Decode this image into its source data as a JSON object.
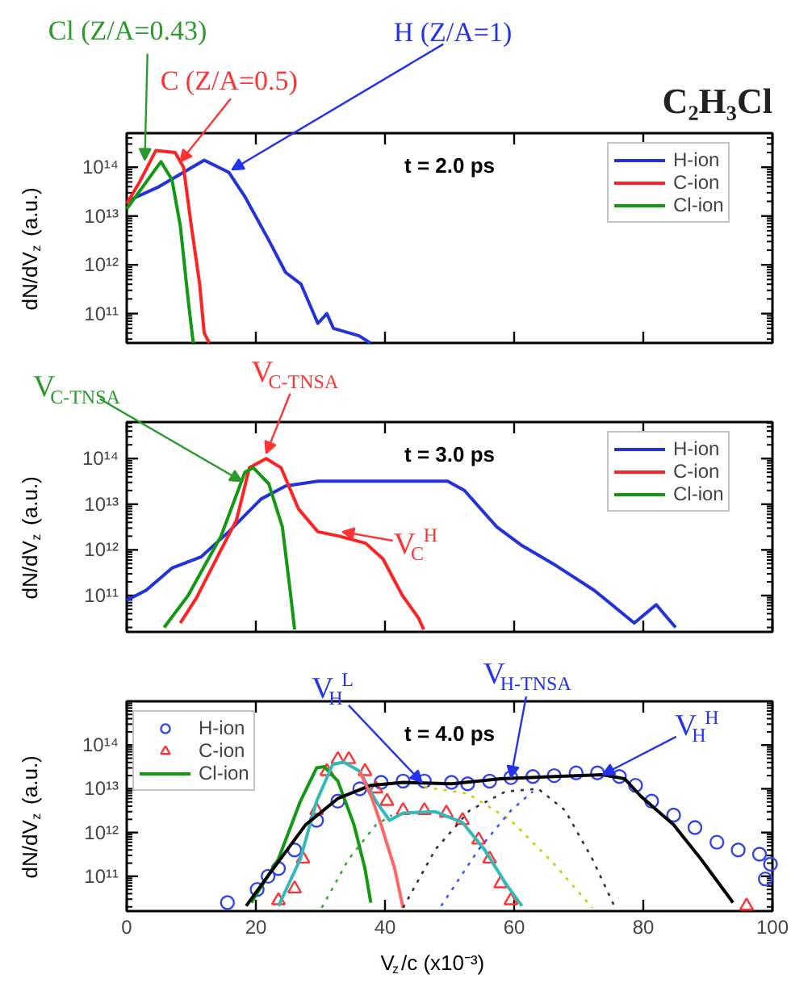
{
  "chart_data": [
    {
      "type": "line",
      "title": "C₂H₃Cl",
      "ylabel": "dN/dV$_{z}$ (a.u.)",
      "log": "y",
      "legend": "top right",
      "tick_labels": "y",
      "xlim": [
        0,
        100
      ],
      "xticks": [
        0,
        20,
        40,
        60,
        80,
        100
      ],
      "ylim": [
        25000000000.0,
        500000000000000.0
      ],
      "yticks": [
        {
          "value": 100000000000.0,
          "label": "10¹¹"
        },
        {
          "value": 1000000000000.0,
          "label": "10¹²"
        },
        {
          "value": 10000000000000.0,
          "label": "10¹³"
        },
        {
          "value": 100000000000000.0,
          "label": "10¹⁴"
        }
      ],
      "annotations": [
        {
          "text": "Cl (Z/A=0.43)",
          "x": 2.8,
          "y": 140000000000000.0
        },
        {
          "text": "C (Z/A=0.5)",
          "x": 8.3,
          "y": 130000000000000.0
        },
        {
          "text": "H (Z/A=1)",
          "x": 16.3,
          "y": 89000000000000.0
        },
        "t = 2.0 ps"
      ],
      "series": [
        {
          "name": "H-ion",
          "color": "#2233dd",
          "x": [
            0,
            5,
            12,
            15.8,
            18.3,
            22,
            24.6,
            27,
            29.6,
            31,
            32,
            36,
            37.7
          ],
          "values": [
            20000000000000.0,
            40000000000000.0,
            140000000000000.0,
            79000000000000.0,
            25000000000000.0,
            3200000000000.0,
            700000000000.0,
            400000000000.0,
            63000000000.0,
            100000000000.0,
            50000000000.0,
            35000000000.0,
            25000000000.0
          ]
        },
        {
          "name": "C-ion",
          "color": "#ff2222",
          "x": [
            0,
            2,
            4.5,
            7.5,
            8.8,
            10,
            11.3,
            12,
            12.8
          ],
          "values": [
            18000000000000.0,
            50000000000000.0,
            220000000000000.0,
            200000000000000.0,
            100000000000000.0,
            6300000000000.0,
            400000000000.0,
            40000000000.0,
            25000000000.0
          ]
        },
        {
          "name": "Cl-ion",
          "color": "#119911",
          "x": [
            0,
            5.3,
            7,
            8.3,
            9.5,
            10.3
          ],
          "values": [
            14000000000000.0,
            130000000000000.0,
            56000000000000.0,
            6300000000000.0,
            200000000000.0,
            25000000000.0
          ]
        }
      ]
    },
    {
      "type": "line",
      "ylabel": "dN/dV$_{z}$ (a.u.)",
      "log": "y",
      "legend": "top right",
      "tick_labels": "y",
      "xlim": [
        0,
        100
      ],
      "xticks": [
        0,
        20,
        40,
        60,
        80,
        100
      ],
      "ylim": [
        16000000000.0,
        630000000000000.0
      ],
      "yticks": [
        {
          "value": 100000000000.0,
          "label": "10¹¹"
        },
        {
          "value": 1000000000000.0,
          "label": "10¹²"
        },
        {
          "value": 10000000000000.0,
          "label": "10¹³"
        },
        {
          "value": 100000000000000.0,
          "label": "10¹⁴"
        }
      ],
      "annotations": [
        {
          "text": "V$_{C-TNSA}$",
          "x": 21.6,
          "y": 130000000000000.0
        },
        {
          "text": "V$_{C-TNSA}$",
          "x": 17.8,
          "y": 32000000000000.0
        },
        {
          "text": "V$_{C}$$^{H}$",
          "x": 33.4,
          "y": 2500000000000.0
        },
        "t = 3.0 ps"
      ],
      "series": [
        {
          "name": "H-ion",
          "color": "#2233dd",
          "x": [
            0,
            3,
            7,
            11.5,
            15.8,
            20.8,
            24.6,
            29.6,
            40,
            49.7,
            52.3,
            57.3,
            61,
            66,
            72.4,
            76,
            78.6,
            82,
            85
          ],
          "values": [
            79000000000.0,
            130000000000.0,
            400000000000.0,
            700000000000.0,
            2500000000000.0,
            13000000000000.0,
            25000000000000.0,
            32000000000000.0,
            32000000000000.0,
            32000000000000.0,
            20000000000000.0,
            3200000000000.0,
            1300000000000.0,
            500000000000.0,
            130000000000.0,
            50000000000.0,
            25000000000.0,
            63000000000.0,
            20000000000.0
          ]
        },
        {
          "name": "C-ion",
          "color": "#ff2222",
          "x": [
            8.3,
            10.8,
            14.6,
            17,
            19,
            21.6,
            23.9,
            26.6,
            29.6,
            32.9,
            37,
            39.7,
            42.7,
            45.2,
            46
          ],
          "values": [
            25000000000.0,
            89000000000.0,
            1000000000000.0,
            4500000000000.0,
            63000000000000.0,
            100000000000000.0,
            63000000000000.0,
            7900000000000.0,
            2500000000000.0,
            2000000000000.0,
            1400000000000.0,
            630000000000.0,
            100000000000.0,
            32000000000.0,
            18000000000.0
          ]
        },
        {
          "name": "Cl-ion",
          "color": "#119911",
          "x": [
            5.8,
            9.5,
            14.6,
            18.3,
            19.6,
            22,
            24.1,
            25.4,
            26
          ],
          "values": [
            20000000000.0,
            100000000000.0,
            2000000000000.0,
            50000000000000.0,
            63000000000000.0,
            28000000000000.0,
            3200000000000.0,
            100000000000.0,
            18000000000.0
          ]
        }
      ]
    },
    {
      "type": "line",
      "ylabel": "dN/dV$_{z}$ (a.u.)",
      "xlabel": "V$_{z}$/c (x10⁻³)",
      "log": "y",
      "legend": "top left",
      "xlim": [
        0,
        100
      ],
      "xticks": [
        0,
        20,
        40,
        60,
        80,
        100
      ],
      "ylim": [
        16000000000.0,
        1000000000000000.0
      ],
      "yticks": [
        {
          "value": 100000000000.0,
          "label": "10¹¹"
        },
        {
          "value": 1000000000000.0,
          "label": "10¹²"
        },
        {
          "value": 10000000000000.0,
          "label": "10¹³"
        },
        {
          "value": 100000000000000.0,
          "label": "10¹⁴"
        }
      ],
      "annotations": [
        {
          "text": "V$_{H}$$^{L}$",
          "x": 45.7,
          "y": 14000000000000.0
        },
        {
          "text": "V$_{H-TNSA}$",
          "x": 59.5,
          "y": 18000000000000.0
        },
        {
          "text": "V$_{H}$$^{H}$",
          "x": 73.7,
          "y": 21000000000000.0
        },
        "t = 4.0 ps"
      ],
      "series": [
        {
          "name": "H-ion",
          "type": "scatter",
          "marker": "circle",
          "color": "#3344ee",
          "x": [
            15.6,
            20.2,
            21.9,
            23.5,
            26,
            29.4,
            32.7,
            36.1,
            39.4,
            42.8,
            46.1,
            50.3,
            52.8,
            56.2,
            59.5,
            62.9,
            66.2,
            69.6,
            72.9,
            76.3,
            78.8,
            81.3,
            84.7,
            88,
            91.4,
            94.7,
            98,
            99.7,
            98.9
          ],
          "values": [
            25000000000.0,
            50000000000.0,
            100000000000.0,
            150000000000.0,
            400000000000.0,
            1900000000000.0,
            5200000000000.0,
            10000000000000.0,
            14000000000000.0,
            15000000000000.0,
            15000000000000.0,
            14000000000000.0,
            13000000000000.0,
            15000000000000.0,
            18000000000000.0,
            19000000000000.0,
            20000000000000.0,
            23000000000000.0,
            23000000000000.0,
            19000000000000.0,
            12000000000000.0,
            5200000000000.0,
            2500000000000.0,
            1300000000000.0,
            600000000000.0,
            400000000000.0,
            320000000000.0,
            190000000000.0,
            87000000000.0
          ]
        },
        {
          "name": "C-ion",
          "type": "scatter",
          "marker": "triangle",
          "color": "#ff3333",
          "x": [
            23.5,
            26,
            27.3,
            29.4,
            31,
            32.7,
            34.4,
            36.9,
            38.6,
            40.3,
            42.8,
            46.1,
            49.5,
            52,
            54.5,
            56.2,
            57.9,
            59.5,
            96
          ],
          "values": [
            28000000000.0,
            52000000000.0,
            250000000000.0,
            3200000000000.0,
            25000000000000.0,
            47000000000000.0,
            47000000000000.0,
            25000000000000.0,
            10000000000000.0,
            5200000000000.0,
            3200000000000.0,
            3200000000000.0,
            2800000000000.0,
            1900000000000.0,
            680000000000.0,
            250000000000.0,
            68000000000.0,
            28000000000.0,
            21000000000.0
          ]
        },
        {
          "name": "Cl-ion",
          "color": "#119911",
          "x": [
            19.3,
            23.5,
            26.9,
            29.4,
            30.6,
            32.7,
            35.2,
            36.9,
            37.8
          ],
          "values": [
            25000000000.0,
            250000000000.0,
            5200000000000.0,
            30000000000000.0,
            32000000000000.0,
            15000000000000.0,
            1500000000000.0,
            150000000000.0,
            25000000000.0
          ]
        },
        {
          "color": "#33bbbb",
          "x": [
            23.5,
            26.9,
            29.4,
            31.9,
            33.6,
            36.1,
            38.6,
            40.7,
            42.8,
            47.8,
            52,
            55.4,
            58.7,
            61.2
          ],
          "values": [
            21000000000.0,
            250000000000.0,
            5200000000000.0,
            36000000000000.0,
            41000000000000.0,
            25000000000000.0,
            5200000000000.0,
            1900000000000.0,
            2800000000000.0,
            3000000000000.0,
            1700000000000.0,
            410000000000.0,
            68000000000.0,
            21000000000.0
          ]
        },
        {
          "color": "#000000",
          "x": [
            18.5,
            22.7,
            27.7,
            32.7,
            37.8,
            42.8,
            50.3,
            57.9,
            66.2,
            73.7,
            77.1,
            79.6,
            84.7,
            88.9,
            93.9
          ],
          "values": [
            21000000000.0,
            150000000000.0,
            1500000000000.0,
            6000000000000.0,
            12000000000000.0,
            14000000000000.0,
            13000000000000.0,
            17000000000000.0,
            19000000000000.0,
            21000000000000.0,
            17000000000000.0,
            6800000000000.0,
            1500000000000.0,
            250000000000.0,
            25000000000.0
          ]
        },
        {
          "color": "#33aa33",
          "line_style": "dotted",
          "x": [
            30.2,
            34.4,
            38.6,
            41.1
          ],
          "values": [
            19000000000.0,
            250000000000.0,
            1500000000000.0,
            2500000000000.0
          ]
        },
        {
          "color": "#ff6666",
          "x": [
            36.1,
            38,
            39.4,
            41.5,
            42.8
          ],
          "values": [
            25000000000000.0,
            6000000000000.0,
            1500000000000.0,
            150000000000.0,
            19000000000.0
          ]
        },
        {
          "color": "#333333",
          "line_style": "dotted",
          "x": [
            42.8,
            47.8,
            53.1,
            58.7,
            63.7,
            67.9,
            72.1,
            75.5
          ],
          "values": [
            19000000000.0,
            410000000000.0,
            3200000000000.0,
            8700000000000.0,
            10000000000000.0,
            3200000000000.0,
            250000000000.0,
            21000000000.0
          ]
        },
        {
          "color": "#cccc00",
          "line_style": "dotted",
          "x": [
            46.1,
            52.8,
            59.5,
            66.2,
            72.1
          ],
          "values": [
            11000000000000.0,
            7800000000000.0,
            1900000000000.0,
            190000000000.0,
            19000000000.0
          ]
        },
        {
          "color": "#3355ff",
          "line_style": "dotted",
          "x": [
            48.7,
            54.5,
            59.5,
            62.9
          ],
          "values": [
            21000000000.0,
            410000000000.0,
            3200000000000.0,
            8700000000000.0
          ]
        }
      ]
    }
  ]
}
